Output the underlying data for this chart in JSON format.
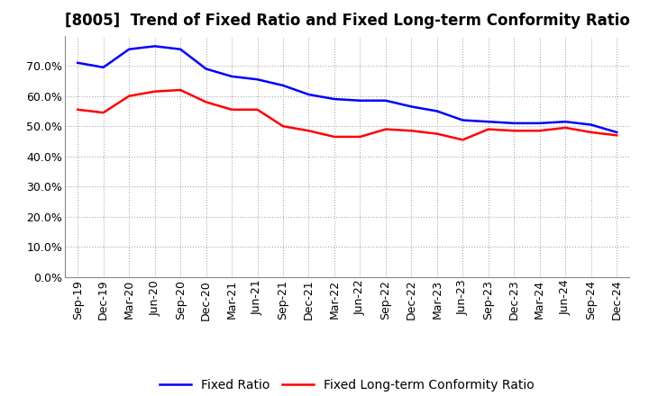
{
  "title": "[8005]  Trend of Fixed Ratio and Fixed Long-term Conformity Ratio",
  "x_labels": [
    "Sep-19",
    "Dec-19",
    "Mar-20",
    "Jun-20",
    "Sep-20",
    "Dec-20",
    "Mar-21",
    "Jun-21",
    "Sep-21",
    "Dec-21",
    "Mar-22",
    "Jun-22",
    "Sep-22",
    "Dec-22",
    "Mar-23",
    "Jun-23",
    "Sep-23",
    "Dec-23",
    "Mar-24",
    "Jun-24",
    "Sep-24",
    "Dec-24"
  ],
  "fixed_ratio": [
    71.0,
    69.5,
    75.5,
    76.5,
    75.5,
    69.0,
    66.5,
    65.5,
    63.5,
    60.5,
    59.0,
    58.5,
    58.5,
    56.5,
    55.0,
    52.0,
    51.5,
    51.0,
    51.0,
    51.5,
    50.5,
    48.0
  ],
  "fixed_lt_ratio": [
    55.5,
    54.5,
    60.0,
    61.5,
    62.0,
    58.0,
    55.5,
    55.5,
    50.0,
    48.5,
    46.5,
    46.5,
    49.0,
    48.5,
    47.5,
    45.5,
    49.0,
    48.5,
    48.5,
    49.5,
    48.0,
    47.0
  ],
  "fixed_ratio_color": "#0000FF",
  "fixed_lt_ratio_color": "#FF0000",
  "ylim": [
    0,
    80
  ],
  "yticks": [
    0,
    10,
    20,
    30,
    40,
    50,
    60,
    70
  ],
  "bg_color": "#FFFFFF",
  "plot_bg_color": "#FFFFFF",
  "grid_color": "#AAAAAA",
  "legend_fixed_ratio": "Fixed Ratio",
  "legend_fixed_lt_ratio": "Fixed Long-term Conformity Ratio",
  "title_fontsize": 12,
  "axis_fontsize": 9,
  "legend_fontsize": 10,
  "line_width": 1.8
}
